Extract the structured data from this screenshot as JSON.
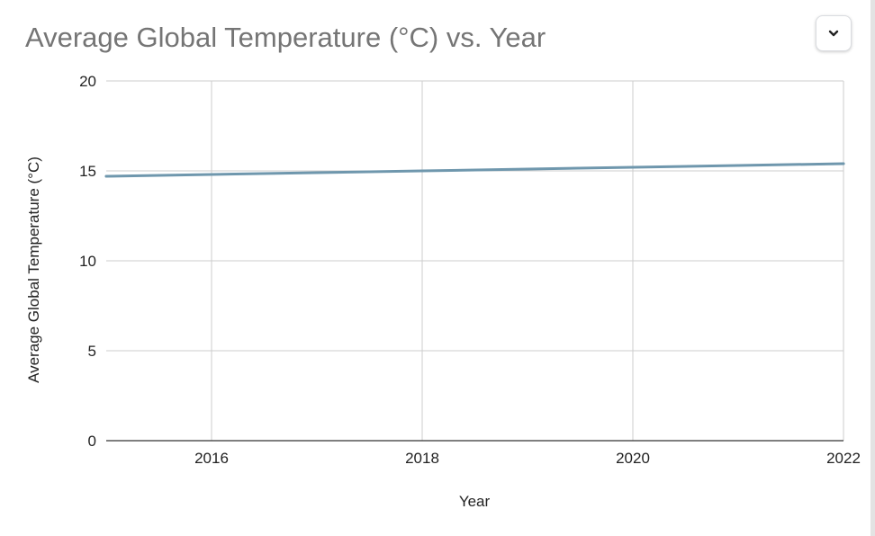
{
  "chart_data": {
    "type": "line",
    "title": "Average Global Temperature (°C) vs. Year",
    "xlabel": "Year",
    "ylabel": "Average Global Temperature (°C)",
    "xlim": [
      2015,
      2022
    ],
    "ylim": [
      0,
      20
    ],
    "x_ticks": [
      2016,
      2018,
      2020,
      2022
    ],
    "y_ticks": [
      0,
      5,
      10,
      15,
      20
    ],
    "grid": true,
    "series": [
      {
        "color": "#6f97ad",
        "points": [
          {
            "x": 2015,
            "y": 14.7
          },
          {
            "x": 2016,
            "y": 14.8
          },
          {
            "x": 2017,
            "y": 14.9
          },
          {
            "x": 2018,
            "y": 15.0
          },
          {
            "x": 2019,
            "y": 15.1
          },
          {
            "x": 2020,
            "y": 15.2
          },
          {
            "x": 2021,
            "y": 15.3
          },
          {
            "x": 2022,
            "y": 15.4
          }
        ]
      }
    ]
  },
  "menu": {
    "icon": "chevron-down-icon"
  }
}
